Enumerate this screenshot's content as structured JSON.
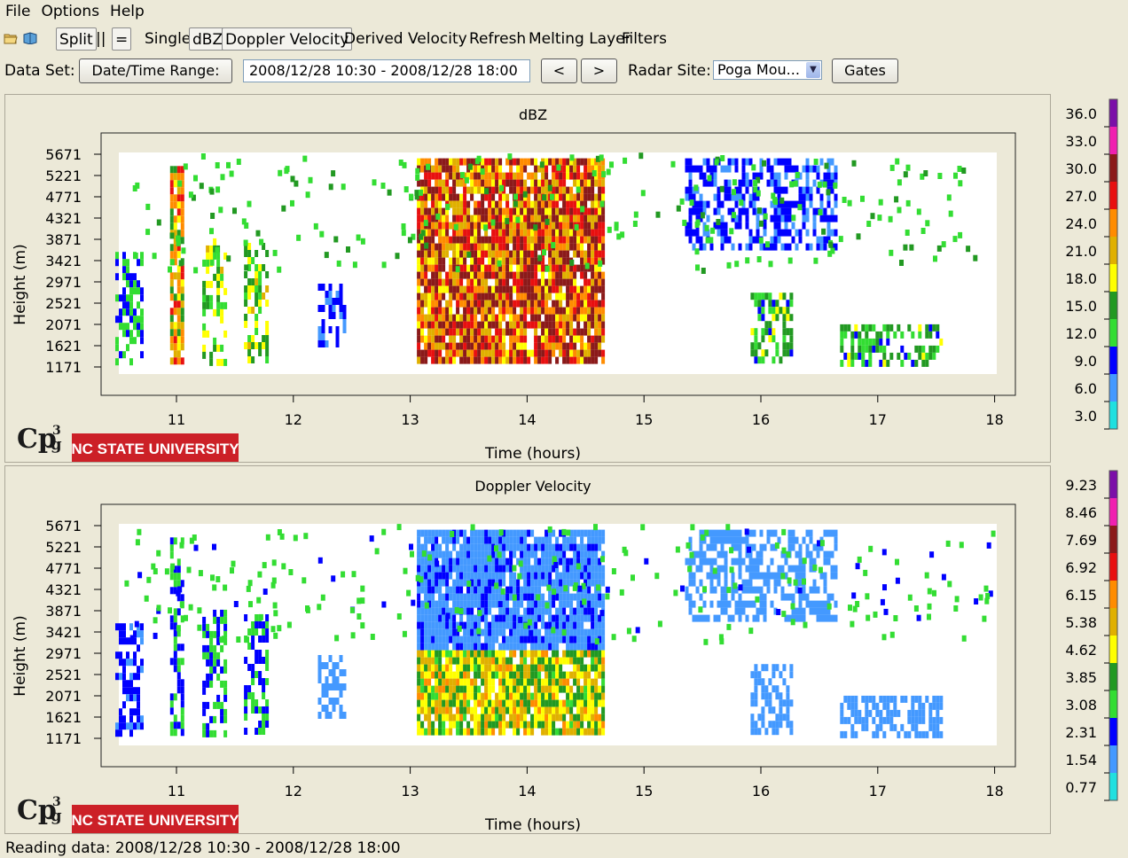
{
  "menu": [
    "File",
    "Options",
    "Help"
  ],
  "toolbar": {
    "icons": [
      "open-folder-icon",
      "open-book-icon"
    ],
    "split_label": "Split",
    "parallel_label": "||",
    "equal_label": "=",
    "single_label": "Single",
    "dbz_label": "dBZ",
    "doppler_label": "Doppler Velocity",
    "derived_label": "Derived Velocity",
    "refresh_label": "Refresh",
    "melting_label": "Melting Layer",
    "filters_label": "Filters"
  },
  "dataset": {
    "label": "Data Set:",
    "range_button": "Date/Time Range:",
    "range_value": "2008/12/28 10:30 - 2008/12/28 18:00",
    "prev_label": "<",
    "next_label": ">",
    "radar_label": "Radar Site:",
    "radar_value": "Poga Mou...",
    "gates_label": "Gates"
  },
  "logos": {
    "cp3": "Cp3g",
    "university": "NC STATE UNIVERSITY"
  },
  "chart_data": [
    {
      "type": "heatmap",
      "title": "dBZ",
      "xlabel": "Time (hours)",
      "ylabel": "Height (m)",
      "xlim": [
        10.5,
        18.0
      ],
      "xticks": [
        "11",
        "12",
        "13",
        "14",
        "15",
        "16",
        "17",
        "18"
      ],
      "yticks": [
        "1171",
        "1621",
        "2071",
        "2521",
        "2971",
        "3421",
        "3871",
        "4321",
        "4771",
        "5221",
        "5671"
      ],
      "legend_values": [
        "36.0",
        "33.0",
        "30.0",
        "27.0",
        "24.0",
        "21.0",
        "18.0",
        "15.0",
        "12.0",
        "9.0",
        "6.0",
        "3.0"
      ],
      "legend_colors": [
        "#7b0fa8",
        "#f020b0",
        "#8b1a1a",
        "#e81010",
        "#ff8c00",
        "#e0b000",
        "#ffff00",
        "#229922",
        "#33dd33",
        "#0000ff",
        "#4499ff",
        "#20e0e0"
      ],
      "clusters": [
        {
          "t0": 10.62,
          "t1": 10.85,
          "h0": 1171,
          "h1": 3600,
          "level": 3
        },
        {
          "t0": 11.08,
          "t1": 11.18,
          "h0": 1171,
          "h1": 5500,
          "level": 7
        },
        {
          "t0": 11.35,
          "t1": 11.55,
          "h0": 1171,
          "h1": 3900,
          "level": 5
        },
        {
          "t0": 11.7,
          "t1": 11.88,
          "h0": 1171,
          "h1": 3800,
          "level": 5
        },
        {
          "t0": 12.32,
          "t1": 12.55,
          "h0": 1620,
          "h1": 2900,
          "level": 2
        },
        {
          "t0": 13.15,
          "t1": 14.7,
          "h0": 1171,
          "h1": 5671,
          "level": 9
        },
        {
          "t0": 15.95,
          "t1": 16.3,
          "h0": 1171,
          "h1": 2700,
          "level": 4
        },
        {
          "t0": 16.7,
          "t1": 17.55,
          "h0": 1171,
          "h1": 2000,
          "level": 4
        },
        {
          "t0": 15.4,
          "t1": 16.65,
          "h0": 3700,
          "h1": 5671,
          "level": 2
        }
      ]
    },
    {
      "type": "heatmap",
      "title": "Doppler Velocity",
      "xlabel": "Time (hours)",
      "ylabel": "Height (m)",
      "xlim": [
        10.5,
        18.0
      ],
      "xticks": [
        "11",
        "12",
        "13",
        "14",
        "15",
        "16",
        "17",
        "18"
      ],
      "yticks": [
        "1171",
        "1621",
        "2071",
        "2521",
        "2971",
        "3421",
        "3871",
        "4321",
        "4771",
        "5221",
        "5671"
      ],
      "legend_values": [
        "9.23",
        "8.46",
        "7.69",
        "6.92",
        "6.15",
        "5.38",
        "4.62",
        "3.85",
        "3.08",
        "2.31",
        "1.54",
        "0.77"
      ],
      "legend_colors": [
        "#7b0fa8",
        "#f020b0",
        "#8b1a1a",
        "#e81010",
        "#ff8c00",
        "#e0b000",
        "#ffff00",
        "#229922",
        "#33dd33",
        "#0000ff",
        "#4499ff",
        "#20e0e0"
      ],
      "clusters": [
        {
          "t0": 10.62,
          "t1": 10.85,
          "h0": 1171,
          "h1": 3600,
          "level": 2
        },
        {
          "t0": 11.08,
          "t1": 11.18,
          "h0": 1171,
          "h1": 5500,
          "level": 3
        },
        {
          "t0": 11.35,
          "t1": 11.55,
          "h0": 1171,
          "h1": 3900,
          "level": 3
        },
        {
          "t0": 11.7,
          "t1": 11.88,
          "h0": 1171,
          "h1": 3800,
          "level": 3
        },
        {
          "t0": 12.32,
          "t1": 12.55,
          "h0": 1620,
          "h1": 2900,
          "level": 1
        },
        {
          "t0": 13.15,
          "t1": 14.7,
          "h0": 1171,
          "h1": 5671,
          "level": 6
        },
        {
          "t0": 15.95,
          "t1": 16.3,
          "h0": 1171,
          "h1": 2700,
          "level": 1
        },
        {
          "t0": 16.7,
          "t1": 17.55,
          "h0": 1171,
          "h1": 2000,
          "level": 1
        },
        {
          "t0": 15.4,
          "t1": 16.65,
          "h0": 3700,
          "h1": 5671,
          "level": 1
        }
      ]
    }
  ],
  "status": "Reading data: 2008/12/28 10:30 - 2008/12/28 18:00"
}
